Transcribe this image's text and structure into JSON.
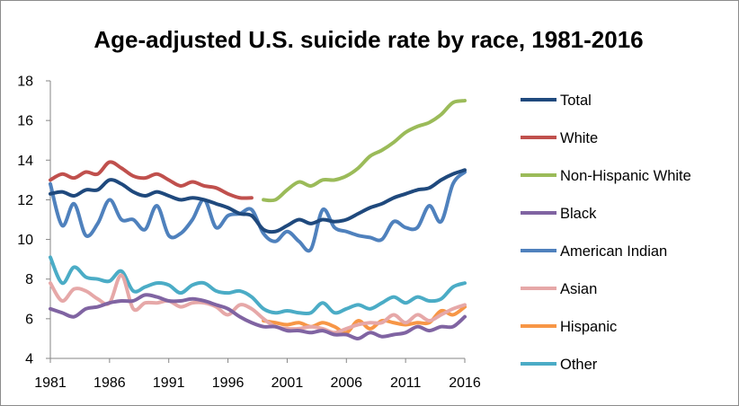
{
  "chart_data": {
    "type": "line",
    "title": "Age-adjusted U.S. suicide rate by race, 1981-2016",
    "xlabel": "",
    "ylabel": "",
    "xlim": [
      1981,
      2016
    ],
    "ylim": [
      4,
      18
    ],
    "x_ticks": [
      "1981",
      "1986",
      "1991",
      "1996",
      "2001",
      "2006",
      "2011",
      "2016"
    ],
    "y_ticks": [
      "4",
      "6",
      "8",
      "10",
      "12",
      "14",
      "16",
      "18"
    ],
    "grid": false,
    "legend_position": "right",
    "series": [
      {
        "name": "Total",
        "color": "#1f497d",
        "x": [
          1981,
          1982,
          1983,
          1984,
          1985,
          1986,
          1987,
          1988,
          1989,
          1990,
          1991,
          1992,
          1993,
          1994,
          1995,
          1996,
          1997,
          1998,
          1999,
          2000,
          2001,
          2002,
          2003,
          2004,
          2005,
          2006,
          2007,
          2008,
          2009,
          2010,
          2011,
          2012,
          2013,
          2014,
          2015,
          2016
        ],
        "values": [
          12.3,
          12.4,
          12.2,
          12.5,
          12.5,
          13.0,
          12.8,
          12.4,
          12.2,
          12.4,
          12.2,
          12.0,
          12.1,
          12.0,
          11.8,
          11.6,
          11.3,
          11.2,
          10.5,
          10.4,
          10.7,
          11.0,
          10.8,
          11.0,
          10.9,
          11.0,
          11.3,
          11.6,
          11.8,
          12.1,
          12.3,
          12.5,
          12.6,
          13.0,
          13.3,
          13.5
        ]
      },
      {
        "name": "White",
        "color": "#c0504d",
        "x": [
          1981,
          1982,
          1983,
          1984,
          1985,
          1986,
          1987,
          1988,
          1989,
          1990,
          1991,
          1992,
          1993,
          1994,
          1995,
          1996,
          1997,
          1998
        ],
        "values": [
          13.0,
          13.3,
          13.1,
          13.4,
          13.3,
          13.9,
          13.6,
          13.2,
          13.1,
          13.3,
          13.0,
          12.7,
          12.9,
          12.7,
          12.6,
          12.3,
          12.1,
          12.1
        ]
      },
      {
        "name": "Non-Hispanic White",
        "color": "#9bbb59",
        "x": [
          1999,
          2000,
          2001,
          2002,
          2003,
          2004,
          2005,
          2006,
          2007,
          2008,
          2009,
          2010,
          2011,
          2012,
          2013,
          2014,
          2015,
          2016
        ],
        "values": [
          12.0,
          12.0,
          12.5,
          12.9,
          12.7,
          13.0,
          13.0,
          13.2,
          13.6,
          14.2,
          14.5,
          14.9,
          15.4,
          15.7,
          15.9,
          16.3,
          16.9,
          17.0
        ]
      },
      {
        "name": "Black",
        "color": "#8064a2",
        "x": [
          1981,
          1982,
          1983,
          1984,
          1985,
          1986,
          1987,
          1988,
          1989,
          1990,
          1991,
          1992,
          1993,
          1994,
          1995,
          1996,
          1997,
          1998,
          1999,
          2000,
          2001,
          2002,
          2003,
          2004,
          2005,
          2006,
          2007,
          2008,
          2009,
          2010,
          2011,
          2012,
          2013,
          2014,
          2015,
          2016
        ],
        "values": [
          6.5,
          6.3,
          6.1,
          6.5,
          6.6,
          6.8,
          6.9,
          6.9,
          7.2,
          7.1,
          6.9,
          6.9,
          7.0,
          6.9,
          6.7,
          6.5,
          6.1,
          5.8,
          5.6,
          5.6,
          5.4,
          5.4,
          5.3,
          5.4,
          5.2,
          5.2,
          5.0,
          5.3,
          5.1,
          5.2,
          5.3,
          5.6,
          5.4,
          5.6,
          5.6,
          6.1
        ]
      },
      {
        "name": "American Indian",
        "color": "#4f81bd",
        "x": [
          1981,
          1982,
          1983,
          1984,
          1985,
          1986,
          1987,
          1988,
          1989,
          1990,
          1991,
          1992,
          1993,
          1994,
          1995,
          1996,
          1997,
          1998,
          1999,
          2000,
          2001,
          2002,
          2003,
          2004,
          2005,
          2006,
          2007,
          2008,
          2009,
          2010,
          2011,
          2012,
          2013,
          2014,
          2015,
          2016
        ],
        "values": [
          12.8,
          10.7,
          11.8,
          10.2,
          10.8,
          12.0,
          11.0,
          11.0,
          10.5,
          11.7,
          10.2,
          10.3,
          11.0,
          12.0,
          10.6,
          11.2,
          11.3,
          11.5,
          10.3,
          9.9,
          10.4,
          9.9,
          9.5,
          11.5,
          10.6,
          10.4,
          10.2,
          10.1,
          10.0,
          10.9,
          10.6,
          10.6,
          11.7,
          10.9,
          12.8,
          13.4
        ]
      },
      {
        "name": "Asian",
        "color": "#e6a8a8",
        "x": [
          1981,
          1982,
          1983,
          1984,
          1985,
          1986,
          1987,
          1988,
          1989,
          1990,
          1991,
          1992,
          1993,
          1994,
          1995,
          1996,
          1997,
          1998,
          1999,
          2000,
          2001,
          2002,
          2003,
          2004,
          2005,
          2006,
          2007,
          2008,
          2009,
          2010,
          2011,
          2012,
          2013,
          2014,
          2015,
          2016
        ],
        "values": [
          7.8,
          6.9,
          7.5,
          7.4,
          7.0,
          6.8,
          8.2,
          6.5,
          6.8,
          6.8,
          6.9,
          6.6,
          6.8,
          6.8,
          6.6,
          6.2,
          6.7,
          6.5,
          6.0,
          5.6,
          5.5,
          5.5,
          5.6,
          5.5,
          5.3,
          5.5,
          5.7,
          5.8,
          5.8,
          6.2,
          5.8,
          6.2,
          5.9,
          6.2,
          6.5,
          6.7
        ]
      },
      {
        "name": "Hispanic",
        "color": "#f79646",
        "x": [
          1999,
          2000,
          2001,
          2002,
          2003,
          2004,
          2005,
          2006,
          2007,
          2008,
          2009,
          2010,
          2011,
          2012,
          2013,
          2014,
          2015,
          2016
        ],
        "values": [
          5.9,
          5.8,
          5.7,
          5.8,
          5.6,
          5.8,
          5.6,
          5.3,
          5.9,
          5.5,
          5.9,
          5.8,
          5.7,
          5.8,
          5.8,
          6.4,
          6.2,
          6.6
        ]
      },
      {
        "name": "Other",
        "color": "#4bacc6",
        "x": [
          1981,
          1982,
          1983,
          1984,
          1985,
          1986,
          1987,
          1988,
          1989,
          1990,
          1991,
          1992,
          1993,
          1994,
          1995,
          1996,
          1997,
          1998,
          1999,
          2000,
          2001,
          2002,
          2003,
          2004,
          2005,
          2006,
          2007,
          2008,
          2009,
          2010,
          2011,
          2012,
          2013,
          2014,
          2015,
          2016
        ],
        "values": [
          9.1,
          7.8,
          8.6,
          8.1,
          8.0,
          7.9,
          8.4,
          7.4,
          7.6,
          7.8,
          7.7,
          7.3,
          7.7,
          7.8,
          7.4,
          7.3,
          7.4,
          7.1,
          6.5,
          6.3,
          6.4,
          6.3,
          6.3,
          6.8,
          6.3,
          6.5,
          6.7,
          6.5,
          6.8,
          7.1,
          6.8,
          7.1,
          6.9,
          7.0,
          7.6,
          7.8
        ]
      }
    ]
  }
}
